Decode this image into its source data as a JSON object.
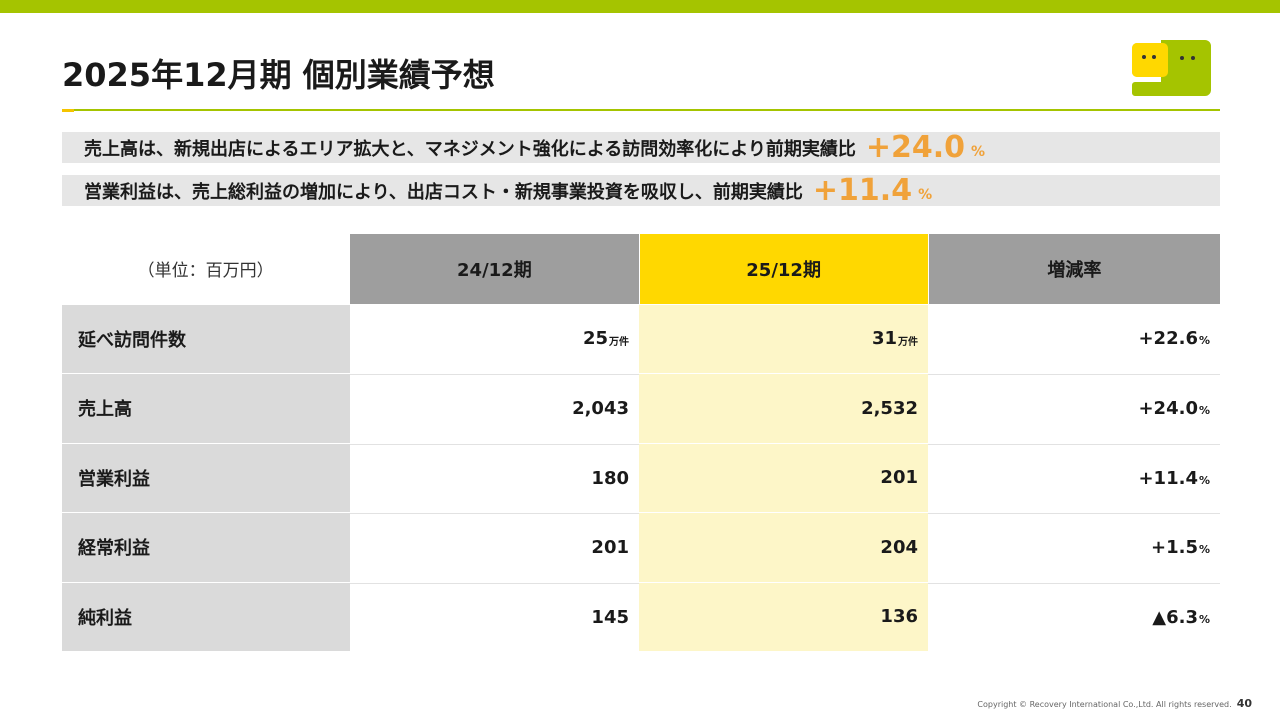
{
  "title": "2025年12月期  個別業績予想",
  "banners": [
    {
      "text": "売上高は、新規出店によるエリア拡大と、マネジメント強化による訪問効率化により前期実績比",
      "value": "+24.0",
      "unit": "%"
    },
    {
      "text": "営業利益は、売上総利益の増加により、出店コスト・新規事業投資を吸収し、前期実績比",
      "value": "+11.4",
      "unit": "%"
    }
  ],
  "table": {
    "unit_label": "（単位：百万円）",
    "headers": {
      "prev": "24/12期",
      "curr": "25/12期",
      "rate": "増減率"
    },
    "rows": [
      {
        "label": "延べ訪問件数",
        "prev": "25",
        "prev_unit": "万件",
        "curr": "31",
        "curr_unit": "万件",
        "rate": "+22.6",
        "rate_unit": "%"
      },
      {
        "label": "売上高",
        "prev": "2,043",
        "prev_unit": "",
        "curr": "2,532",
        "curr_unit": "",
        "rate": "+24.0",
        "rate_unit": "%"
      },
      {
        "label": "営業利益",
        "prev": "180",
        "prev_unit": "",
        "curr": "201",
        "curr_unit": "",
        "rate": "+11.4",
        "rate_unit": "%"
      },
      {
        "label": "経常利益",
        "prev": "201",
        "prev_unit": "",
        "curr": "204",
        "curr_unit": "",
        "rate": "+1.5",
        "rate_unit": "%"
      },
      {
        "label": "純利益",
        "prev": "145",
        "prev_unit": "",
        "curr": "136",
        "curr_unit": "",
        "rate": "▲6.3",
        "rate_unit": "%"
      }
    ]
  },
  "footer": {
    "copyright": "Copyright © Recovery International Co.,Ltd. All rights reserved.",
    "page_number": "40"
  },
  "colors": {
    "brand_green": "#a5c400",
    "brand_yellow": "#ffd800",
    "accent_orange": "#f0a23a",
    "header_gray": "#9e9e9e"
  },
  "logo": {
    "icon": "two-faces-logo-icon"
  }
}
